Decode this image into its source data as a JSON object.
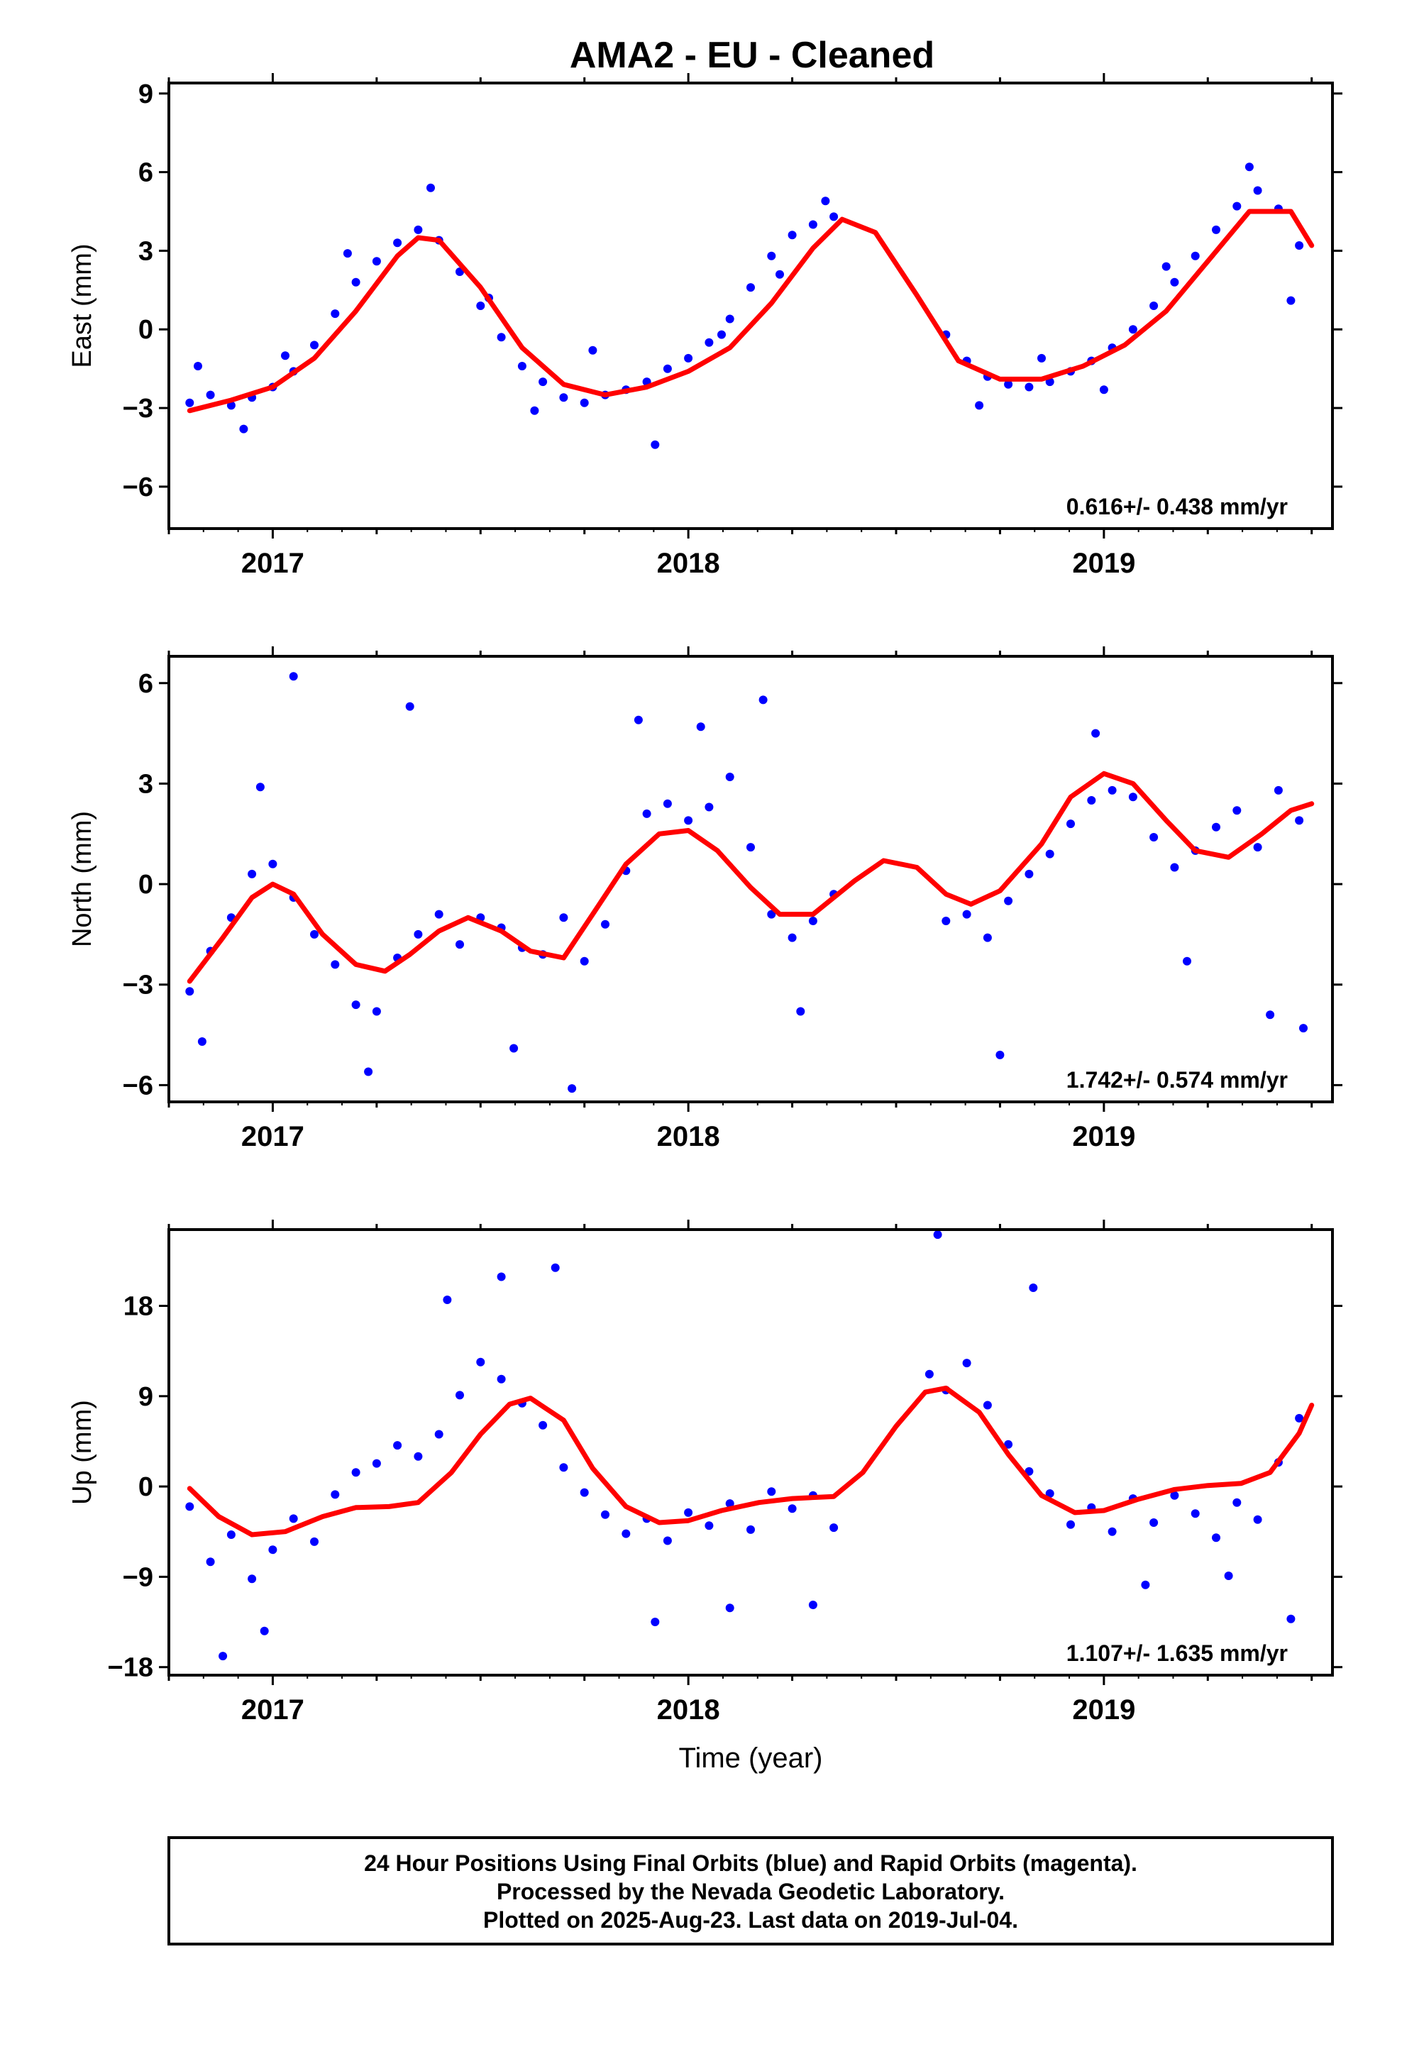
{
  "title": "AMA2  - EU - Cleaned",
  "colors": {
    "points": "#0000ff",
    "model": "#ff0000",
    "frame": "#000000"
  },
  "footer": {
    "line1": "24 Hour Positions Using Final Orbits (blue) and Rapid Orbits (magenta).",
    "line2": "Processed by the Nevada Geodetic Laboratory.",
    "line3": "Plotted on 2025-Aug-23. Last data on 2019-Jul-04."
  },
  "chart_data": [
    {
      "type": "scatter",
      "ylabel": "East (mm)",
      "xlabel": "",
      "xlim": [
        2016.75,
        2019.55
      ],
      "ylim": [
        -7.6,
        9.4
      ],
      "yticks": [
        -6,
        -3,
        0,
        3,
        6,
        9
      ],
      "xticks": [
        2017,
        2018,
        2019
      ],
      "rate_text": "0.616+/- 0.438 mm/yr",
      "series": [
        {
          "kind": "points",
          "x": [
            2016.8,
            2016.85,
            2016.9,
            2016.95,
            2017.0,
            2017.05,
            2017.1,
            2017.15,
            2017.2,
            2017.25,
            2017.3,
            2017.35,
            2017.4,
            2017.45,
            2017.5,
            2017.55,
            2017.6,
            2017.65,
            2017.7,
            2017.75,
            2017.8,
            2017.85,
            2017.9,
            2017.95,
            2018.0,
            2018.05,
            2018.1,
            2018.15,
            2018.2,
            2018.25,
            2018.3,
            2018.35,
            2018.62,
            2018.67,
            2018.72,
            2018.77,
            2018.82,
            2018.87,
            2018.92,
            2018.97,
            2019.02,
            2019.07,
            2019.12,
            2019.17,
            2019.22,
            2019.27,
            2019.32,
            2019.37,
            2019.42,
            2019.47,
            2016.82,
            2016.93,
            2017.03,
            2017.18,
            2017.38,
            2017.52,
            2017.63,
            2017.77,
            2017.92,
            2018.08,
            2018.22,
            2018.33,
            2018.7,
            2018.85,
            2019.0,
            2019.15,
            2019.35,
            2019.45
          ],
          "y": [
            -2.8,
            -2.5,
            -2.9,
            -2.6,
            -2.2,
            -1.6,
            -0.6,
            0.6,
            1.8,
            2.6,
            3.3,
            3.8,
            3.4,
            2.2,
            0.9,
            -0.3,
            -1.4,
            -2.0,
            -2.6,
            -2.8,
            -2.5,
            -2.3,
            -2.0,
            -1.5,
            -1.1,
            -0.5,
            0.4,
            1.6,
            2.8,
            3.6,
            4.0,
            4.3,
            -0.2,
            -1.2,
            -1.8,
            -2.1,
            -2.2,
            -2.0,
            -1.6,
            -1.2,
            -0.7,
            0.0,
            0.9,
            1.8,
            2.8,
            3.8,
            4.7,
            5.3,
            4.6,
            3.2,
            -1.4,
            -3.8,
            -1.0,
            2.9,
            5.4,
            1.2,
            -3.1,
            -0.8,
            -4.4,
            -0.2,
            2.1,
            4.9,
            -2.9,
            -1.1,
            -2.3,
            2.4,
            6.2,
            1.1
          ]
        },
        {
          "kind": "model",
          "x": [
            2016.8,
            2016.9,
            2017.0,
            2017.1,
            2017.2,
            2017.3,
            2017.35,
            2017.4,
            2017.5,
            2017.6,
            2017.7,
            2017.8,
            2017.9,
            2018.0,
            2018.1,
            2018.2,
            2018.3,
            2018.37,
            2018.45,
            2018.55,
            2018.65,
            2018.75,
            2018.85,
            2018.95,
            2019.05,
            2019.15,
            2019.25,
            2019.35,
            2019.45,
            2019.5
          ],
          "y": [
            -3.1,
            -2.7,
            -2.2,
            -1.1,
            0.7,
            2.8,
            3.5,
            3.4,
            1.6,
            -0.7,
            -2.1,
            -2.5,
            -2.2,
            -1.6,
            -0.7,
            1.0,
            3.1,
            4.2,
            3.7,
            1.3,
            -1.2,
            -1.9,
            -1.9,
            -1.4,
            -0.6,
            0.7,
            2.6,
            4.5,
            4.5,
            3.2
          ]
        }
      ]
    },
    {
      "type": "scatter",
      "ylabel": "North (mm)",
      "xlabel": "",
      "xlim": [
        2016.75,
        2019.55
      ],
      "ylim": [
        -6.5,
        6.8
      ],
      "yticks": [
        -6,
        -3,
        0,
        3,
        6
      ],
      "xticks": [
        2017,
        2018,
        2019
      ],
      "rate_text": "1.742+/- 0.574 mm/yr",
      "series": [
        {
          "kind": "points",
          "x": [
            2016.8,
            2016.85,
            2016.9,
            2016.95,
            2017.0,
            2017.05,
            2017.1,
            2017.15,
            2017.2,
            2017.25,
            2017.3,
            2017.35,
            2017.4,
            2017.45,
            2017.5,
            2017.55,
            2017.6,
            2017.65,
            2017.7,
            2017.75,
            2017.8,
            2017.85,
            2017.9,
            2017.95,
            2018.0,
            2018.05,
            2018.1,
            2018.15,
            2018.2,
            2018.25,
            2018.3,
            2018.35,
            2018.62,
            2018.67,
            2018.72,
            2018.77,
            2018.82,
            2018.87,
            2018.92,
            2018.97,
            2019.02,
            2019.07,
            2019.12,
            2019.17,
            2019.22,
            2019.27,
            2019.32,
            2019.37,
            2019.42,
            2019.47,
            2016.83,
            2016.97,
            2017.05,
            2017.23,
            2017.33,
            2017.58,
            2017.72,
            2017.88,
            2018.03,
            2018.18,
            2018.27,
            2018.75,
            2018.98,
            2019.2,
            2019.4,
            2019.48
          ],
          "y": [
            -3.2,
            -2.0,
            -1.0,
            0.3,
            0.6,
            -0.4,
            -1.5,
            -2.4,
            -3.6,
            -3.8,
            -2.2,
            -1.5,
            -0.9,
            -1.8,
            -1.0,
            -1.3,
            -1.9,
            -2.1,
            -1.0,
            -2.3,
            -1.2,
            0.4,
            2.1,
            2.4,
            1.9,
            2.3,
            3.2,
            1.1,
            -0.9,
            -1.6,
            -1.1,
            -0.3,
            -1.1,
            -0.9,
            -1.6,
            -0.5,
            0.3,
            0.9,
            1.8,
            2.5,
            2.8,
            2.6,
            1.4,
            0.5,
            1.0,
            1.7,
            2.2,
            1.1,
            2.8,
            1.9,
            -4.7,
            2.9,
            6.2,
            -5.6,
            5.3,
            -4.9,
            -6.1,
            4.9,
            4.7,
            5.5,
            -3.8,
            -5.1,
            4.5,
            -2.3,
            -3.9,
            -4.3
          ]
        },
        {
          "kind": "model",
          "x": [
            2016.8,
            2016.88,
            2016.95,
            2017.0,
            2017.05,
            2017.12,
            2017.2,
            2017.27,
            2017.33,
            2017.4,
            2017.47,
            2017.55,
            2017.62,
            2017.7,
            2017.77,
            2017.85,
            2017.93,
            2018.0,
            2018.07,
            2018.15,
            2018.22,
            2018.3,
            2018.4,
            2018.47,
            2018.55,
            2018.62,
            2018.68,
            2018.75,
            2018.85,
            2018.92,
            2019.0,
            2019.07,
            2019.15,
            2019.22,
            2019.3,
            2019.38,
            2019.45,
            2019.5
          ],
          "y": [
            -2.9,
            -1.6,
            -0.4,
            0.0,
            -0.3,
            -1.5,
            -2.4,
            -2.6,
            -2.1,
            -1.4,
            -1.0,
            -1.4,
            -2.0,
            -2.2,
            -0.9,
            0.6,
            1.5,
            1.6,
            1.0,
            -0.1,
            -0.9,
            -0.9,
            0.1,
            0.7,
            0.5,
            -0.3,
            -0.6,
            -0.2,
            1.2,
            2.6,
            3.3,
            3.0,
            1.9,
            1.0,
            0.8,
            1.5,
            2.2,
            2.4
          ]
        }
      ]
    },
    {
      "type": "scatter",
      "ylabel": "Up (mm)",
      "xlabel": "Time (year)",
      "xlim": [
        2016.75,
        2019.55
      ],
      "ylim": [
        -18.8,
        25.6
      ],
      "yticks": [
        -18,
        -9,
        0,
        9,
        18
      ],
      "xticks": [
        2017,
        2018,
        2019
      ],
      "rate_text": "1.107+/- 1.635 mm/yr",
      "series": [
        {
          "kind": "points",
          "x": [
            2016.8,
            2016.85,
            2016.9,
            2016.95,
            2017.0,
            2017.05,
            2017.1,
            2017.15,
            2017.2,
            2017.25,
            2017.3,
            2017.35,
            2017.4,
            2017.45,
            2017.5,
            2017.55,
            2017.6,
            2017.65,
            2017.7,
            2017.75,
            2017.8,
            2017.85,
            2017.9,
            2017.95,
            2018.0,
            2018.05,
            2018.1,
            2018.15,
            2018.2,
            2018.25,
            2018.3,
            2018.35,
            2018.58,
            2018.62,
            2018.67,
            2018.72,
            2018.77,
            2018.82,
            2018.87,
            2018.92,
            2018.97,
            2019.02,
            2019.07,
            2019.12,
            2019.17,
            2019.22,
            2019.27,
            2019.32,
            2019.37,
            2019.42,
            2019.47,
            2016.88,
            2016.98,
            2017.42,
            2017.55,
            2017.68,
            2017.92,
            2018.1,
            2018.3,
            2018.6,
            2018.83,
            2019.1,
            2019.3,
            2019.45
          ],
          "y": [
            -2.0,
            -7.5,
            -4.8,
            -9.2,
            -6.3,
            -3.2,
            -5.5,
            -0.8,
            1.4,
            2.3,
            4.1,
            3.0,
            5.2,
            9.1,
            12.4,
            10.7,
            8.3,
            6.1,
            1.9,
            -0.6,
            -2.8,
            -4.7,
            -3.2,
            -5.4,
            -2.6,
            -3.9,
            -1.7,
            -4.3,
            -0.5,
            -2.2,
            -0.9,
            -4.1,
            11.2,
            9.6,
            12.3,
            8.1,
            4.2,
            1.5,
            -0.7,
            -3.8,
            -2.1,
            -4.5,
            -1.2,
            -3.6,
            -0.9,
            -2.7,
            -5.1,
            -1.6,
            -3.3,
            2.4,
            6.8,
            -16.9,
            -14.4,
            18.6,
            20.9,
            21.8,
            -13.5,
            -12.1,
            -11.8,
            25.1,
            19.8,
            -9.8,
            -8.9,
            -13.2
          ]
        },
        {
          "kind": "model",
          "x": [
            2016.8,
            2016.87,
            2016.95,
            2017.03,
            2017.12,
            2017.2,
            2017.28,
            2017.35,
            2017.43,
            2017.5,
            2017.57,
            2017.62,
            2017.7,
            2017.77,
            2017.85,
            2017.93,
            2018.0,
            2018.08,
            2018.17,
            2018.25,
            2018.35,
            2018.42,
            2018.5,
            2018.57,
            2018.62,
            2018.7,
            2018.77,
            2018.85,
            2018.93,
            2019.0,
            2019.08,
            2019.17,
            2019.25,
            2019.33,
            2019.4,
            2019.47,
            2019.5
          ],
          "y": [
            -0.2,
            -3.0,
            -4.8,
            -4.5,
            -3.0,
            -2.1,
            -2.0,
            -1.6,
            1.4,
            5.2,
            8.2,
            8.8,
            6.6,
            1.8,
            -2.0,
            -3.6,
            -3.4,
            -2.4,
            -1.6,
            -1.2,
            -1.0,
            1.4,
            6.0,
            9.4,
            9.8,
            7.4,
            3.2,
            -0.9,
            -2.6,
            -2.4,
            -1.3,
            -0.3,
            0.1,
            0.3,
            1.4,
            5.3,
            8.1
          ]
        }
      ]
    }
  ]
}
